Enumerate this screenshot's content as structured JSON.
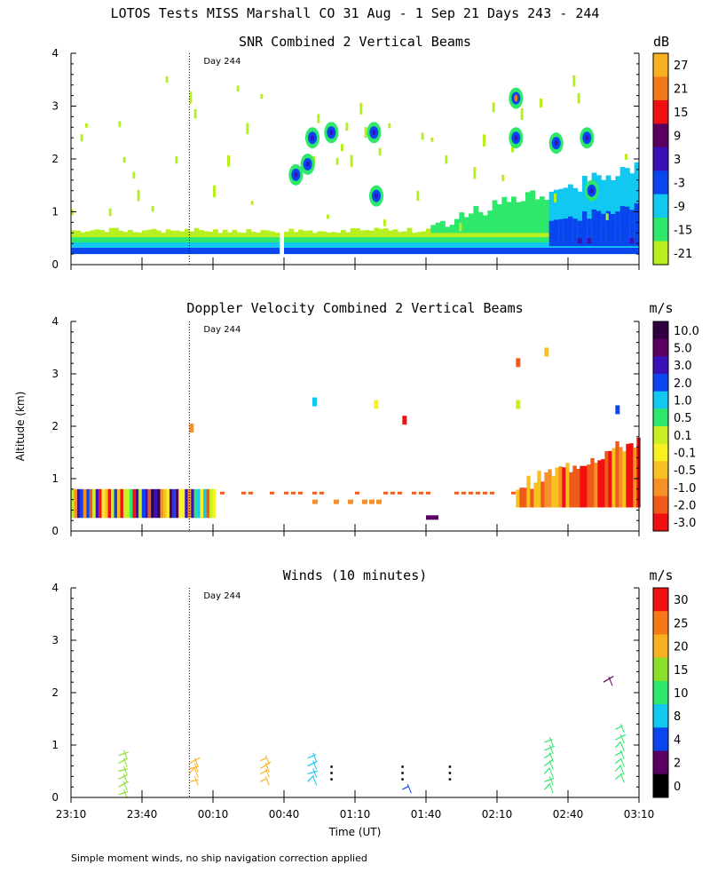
{
  "figure": {
    "title": "LOTOS Tests MISS Marshall CO  31 Aug -  1 Sep 21 Days 243 - 244",
    "footnote": "Simple moment winds, no ship navigation correction applied",
    "xlabel": "Time (UT)",
    "ylabel": "Altitude (km)",
    "day_marker": "Day 244"
  },
  "colors": {
    "scale": [
      "#ffffff",
      "#b7f01e",
      "#2ee86c",
      "#10c8f0",
      "#0a46f0",
      "#3a10b8",
      "#5a0060",
      "#f01010",
      "#f07818",
      "#f8b020"
    ],
    "doppler_scale": [
      "#f01010",
      "#f05a18",
      "#f89028",
      "#f8c020",
      "#f8f020",
      "#c8f020",
      "#2ee86c",
      "#10c8f0",
      "#0a46f0",
      "#3a10b8",
      "#5a0060",
      "#300040"
    ],
    "wind_scale": [
      "#000000",
      "#5a0060",
      "#0a46f0",
      "#10c8f0",
      "#2ee86c",
      "#8ae028",
      "#f8b020",
      "#f87818",
      "#f01010"
    ]
  },
  "chart_data": [
    {
      "type": "heatmap",
      "title": "SNR Combined 2 Vertical Beams",
      "units": "dB",
      "xlabel": "Time (UT)",
      "ylabel": "Altitude (km)",
      "xlim_minutes": [
        0,
        240
      ],
      "ylim": [
        0,
        4
      ],
      "x_ticks": [
        "23:10",
        "23:40",
        "00:10",
        "00:40",
        "01:10",
        "01:40",
        "02:10",
        "02:40",
        "03:10"
      ],
      "y_ticks": [
        "0",
        "1",
        "2",
        "3",
        "4"
      ],
      "colorbar_labels": [
        "27",
        "21",
        "15",
        "9",
        "3",
        "-3",
        "-9",
        "-15",
        "-21"
      ],
      "day_marker_minutes": 50
    },
    {
      "type": "heatmap",
      "title": "Doppler Velocity Combined 2 Vertical Beams",
      "units": "m/s",
      "xlabel": "Time (UT)",
      "ylabel": "Altitude (km)",
      "xlim_minutes": [
        0,
        240
      ],
      "ylim": [
        0,
        4
      ],
      "x_ticks": [
        "23:10",
        "23:40",
        "00:10",
        "00:40",
        "01:10",
        "01:40",
        "02:10",
        "02:40",
        "03:10"
      ],
      "y_ticks": [
        "0",
        "1",
        "2",
        "3",
        "4"
      ],
      "colorbar_labels": [
        "10.0",
        "5.0",
        "3.0",
        "2.0",
        "1.0",
        "0.5",
        "0.1",
        "-0.1",
        "-0.5",
        "-1.0",
        "-2.0",
        "-3.0"
      ],
      "day_marker_minutes": 50
    },
    {
      "type": "scatter",
      "title": "Winds (10 minutes)",
      "units": "m/s",
      "xlabel": "Time (UT)",
      "ylabel": "Altitude (km)",
      "xlim_minutes": [
        0,
        240
      ],
      "ylim": [
        0,
        4
      ],
      "x_ticks": [
        "23:10",
        "23:40",
        "00:10",
        "00:40",
        "01:10",
        "01:40",
        "02:10",
        "02:40",
        "03:10"
      ],
      "y_ticks": [
        "0",
        "1",
        "2",
        "3",
        "4"
      ],
      "colorbar_labels": [
        "30",
        "25",
        "20",
        "15",
        "10",
        "8",
        "4",
        "2",
        "0"
      ],
      "day_marker_minutes": 50,
      "profiles": [
        {
          "t": 20,
          "speed": 15,
          "alts": [
            0.05,
            0.2,
            0.35,
            0.5,
            0.65,
            0.8
          ]
        },
        {
          "t": 50,
          "speed": 22,
          "alts": [
            0.3,
            0.45,
            0.55,
            0.65
          ]
        },
        {
          "t": 80,
          "speed": 22,
          "alts": [
            0.3,
            0.45,
            0.55,
            0.7
          ]
        },
        {
          "t": 100,
          "speed": 9,
          "alts": [
            0.3,
            0.45,
            0.6,
            0.75
          ]
        },
        {
          "t": 140,
          "speed": 4,
          "alts": [
            0.15
          ]
        },
        {
          "t": 200,
          "speed": 12,
          "alts": [
            0.15,
            0.3,
            0.45,
            0.6,
            0.75,
            0.9,
            1.05
          ]
        },
        {
          "t": 230,
          "speed": 14,
          "alts": [
            0.35,
            0.5,
            0.65,
            0.8,
            0.95,
            1.1,
            1.3
          ]
        },
        {
          "t": 225,
          "speed": 3,
          "alts": [
            2.2
          ]
        }
      ]
    }
  ]
}
